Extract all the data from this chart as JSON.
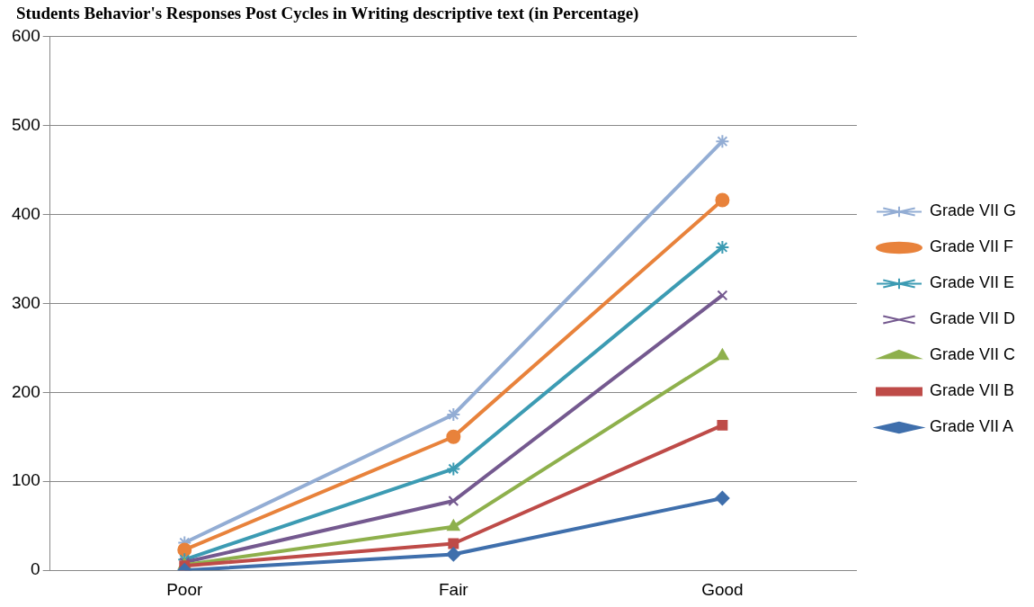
{
  "chart_data": {
    "type": "line",
    "title": "Students Behavior's Responses Post Cycles in Writing descriptive text (in Percentage)",
    "categories": [
      "Poor",
      "Fair",
      "Good"
    ],
    "series": [
      {
        "name": "Grade VII A",
        "color": "#3f6fac",
        "marker": "diamond",
        "values": [
          0,
          18,
          81
        ]
      },
      {
        "name": "Grade VII B",
        "color": "#be4b48",
        "marker": "square",
        "values": [
          5,
          30,
          163
        ]
      },
      {
        "name": "Grade VII C",
        "color": "#8eb04c",
        "marker": "triangle",
        "values": [
          6,
          49,
          241
        ]
      },
      {
        "name": "Grade VII D",
        "color": "#74598f",
        "marker": "x",
        "values": [
          9,
          78,
          309
        ]
      },
      {
        "name": "Grade VII E",
        "color": "#3c9bb3",
        "marker": "cross",
        "values": [
          12,
          114,
          363
        ]
      },
      {
        "name": "Grade VII F",
        "color": "#e8823b",
        "marker": "circle",
        "values": [
          23,
          150,
          416
        ]
      },
      {
        "name": "Grade VII G",
        "color": "#93add4",
        "marker": "cross",
        "values": [
          31,
          175,
          482
        ]
      }
    ],
    "ylim": [
      0,
      600
    ],
    "yticks": [
      0,
      100,
      200,
      300,
      400,
      500,
      600
    ],
    "grid": "y",
    "legend": "right"
  }
}
